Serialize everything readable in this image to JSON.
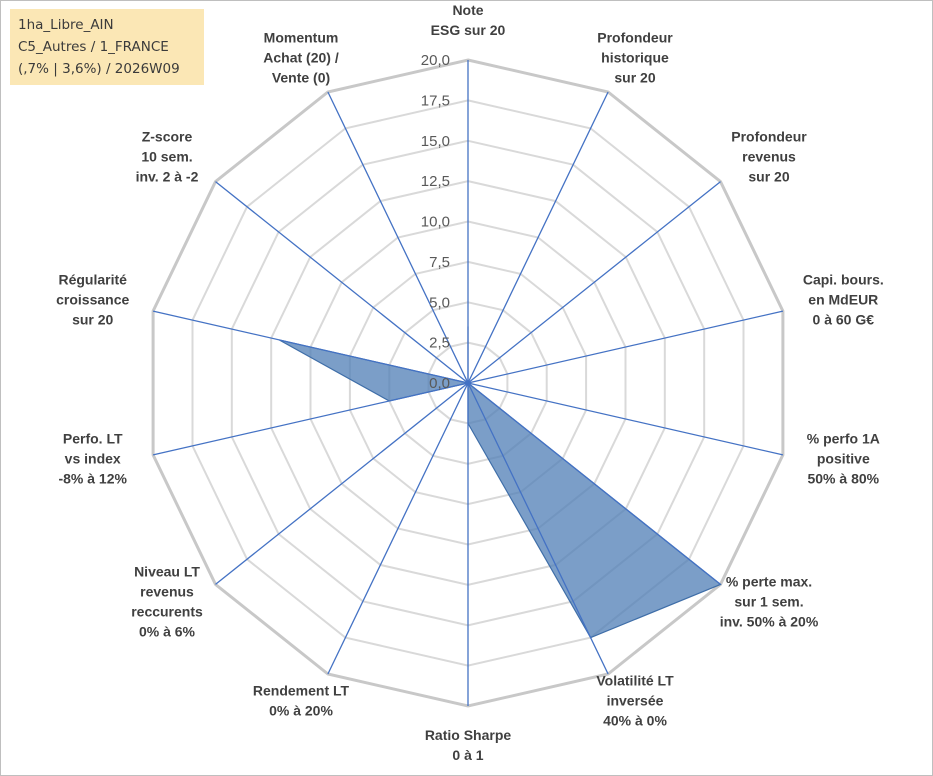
{
  "info_box": {
    "lines": [
      "1ha_Libre_AIN",
      "C5_Autres / 1_FRANCE",
      "(,7% | 3,6%) / 2026W09"
    ]
  },
  "colors": {
    "series_fill": "#4f7db5",
    "series_stroke": "#3f6ea8",
    "axis_spoke": "#4472c4",
    "grid_outer": "#c8c8c8",
    "grid_inner": "#d9d9d9",
    "tick_text": "#595959",
    "label_text": "#404040",
    "info_bg": "#fbe7b5"
  },
  "chart_data": {
    "type": "radar",
    "title": "",
    "range": [
      0,
      20
    ],
    "tick_step": 2.5,
    "tick_labels": [
      "0,0",
      "2,5",
      "5,0",
      "7,5",
      "10,0",
      "12,5",
      "15,0",
      "17,5",
      "20,0"
    ],
    "grid": true,
    "legend": "none",
    "axes": [
      {
        "label": [
          "Note",
          "ESG sur 20"
        ]
      },
      {
        "label": [
          "Profondeur",
          "historique",
          "sur 20"
        ]
      },
      {
        "label": [
          "Profondeur",
          "revenus",
          "sur 20"
        ]
      },
      {
        "label": [
          "Capi. bours.",
          "en MdEUR",
          "0 à 60 G€"
        ]
      },
      {
        "label": [
          "% perfo 1A",
          "positive",
          "50% à 80%"
        ]
      },
      {
        "label": [
          "% perte max.",
          "sur 1 sem.",
          "inv. 50% à 20%"
        ]
      },
      {
        "label": [
          "Volatilité LT",
          "inversée",
          "40% à 0%"
        ]
      },
      {
        "label": [
          "Ratio Sharpe",
          "0 à 1"
        ]
      },
      {
        "label": [
          "Rendement LT",
          "0% à 20%"
        ]
      },
      {
        "label": [
          "Niveau LT",
          "revenus",
          "reccurents",
          "0% à 6%"
        ]
      },
      {
        "label": [
          "Perfo. LT",
          "vs index",
          "-8% à 12%"
        ]
      },
      {
        "label": [
          "Régularité",
          "croissance",
          "sur 20"
        ]
      },
      {
        "label": [
          "Z-score",
          "10 sem.",
          "inv. 2 à -2"
        ]
      },
      {
        "label": [
          "Momentum",
          "Achat (20) /",
          "Vente (0)"
        ]
      }
    ],
    "series": [
      {
        "values": [
          3.5,
          0,
          0,
          0,
          0,
          20,
          17.5,
          2.5,
          0,
          0,
          5.0,
          12.0,
          0,
          0
        ]
      }
    ]
  }
}
